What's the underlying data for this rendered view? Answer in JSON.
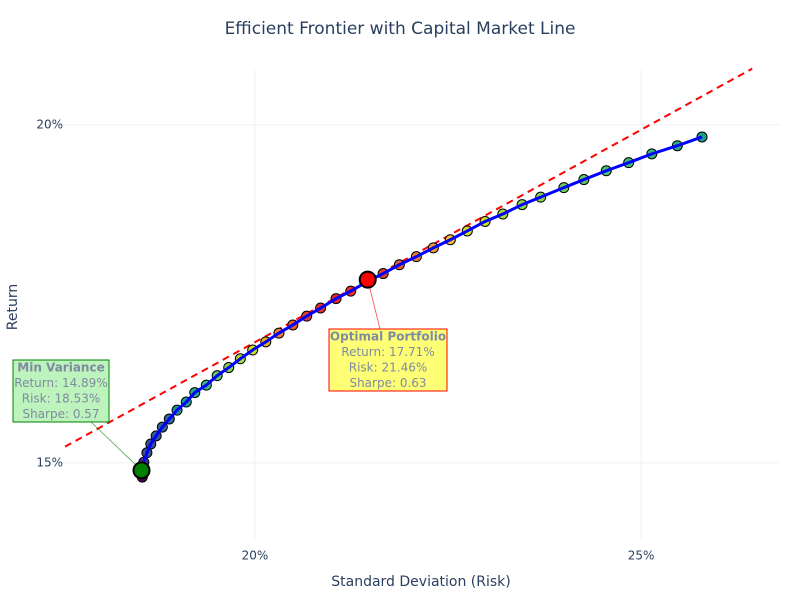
{
  "chart_data": {
    "type": "scatter",
    "title": "Efficient Frontier with Capital Market Line",
    "x_label": "Standard Deviation (Risk)",
    "y_label": "Return",
    "xlim": [
      17.28,
      26.8
    ],
    "ylim": [
      13.86,
      20.81
    ],
    "xticks": [
      {
        "value": 20,
        "label": "20%"
      },
      {
        "value": 25,
        "label": "25%"
      }
    ],
    "yticks": [
      {
        "value": 15,
        "label": "15%"
      },
      {
        "value": 20,
        "label": "20%"
      }
    ],
    "grid": true,
    "series": [
      {
        "color": "#0000ff",
        "x": [
          18.54,
          18.56,
          18.6,
          18.65,
          18.72,
          18.8,
          18.89,
          18.99,
          19.11,
          19.22,
          19.37,
          19.51,
          19.66,
          19.81,
          19.97,
          20.14,
          20.31,
          20.49,
          20.67,
          20.85,
          21.05,
          21.24,
          21.45,
          21.66,
          21.87,
          22.09,
          22.31,
          22.53,
          22.75,
          22.98,
          23.21,
          23.46,
          23.7,
          24.0,
          24.26,
          24.55,
          24.84,
          25.14,
          25.47,
          25.79
        ],
        "values": [
          14.79,
          15.01,
          15.15,
          15.28,
          15.4,
          15.53,
          15.65,
          15.78,
          15.9,
          16.04,
          16.15,
          16.29,
          16.41,
          16.54,
          16.67,
          16.79,
          16.92,
          17.04,
          17.17,
          17.29,
          17.43,
          17.54,
          17.68,
          17.8,
          17.93,
          18.05,
          18.18,
          18.3,
          18.43,
          18.57,
          18.68,
          18.82,
          18.93,
          19.07,
          19.19,
          19.32,
          19.44,
          19.57,
          19.69,
          19.82
        ],
        "marker_colors": [
          "#440154",
          "#46327e",
          "#3b528b",
          "#3b528b",
          "#365c8d",
          "#31688e",
          "#2c728e",
          "#21918c",
          "#1f9e89",
          "#28ae80",
          "#3fbc73",
          "#5ec962",
          "#84d44b",
          "#addc30",
          "#c8e020",
          "#e0b020",
          "#e88030",
          "#e85a30",
          "#e04030",
          "#e03028",
          "#e02828",
          "#e83028",
          "#ff0000",
          "#e04030",
          "#e06030",
          "#e88030",
          "#e8a030",
          "#f0c030",
          "#d8d830",
          "#c8e020",
          "#addc30",
          "#90d743",
          "#84d44b",
          "#6ccd5a",
          "#5ec962",
          "#4ac16d",
          "#3fbc73",
          "#35b779",
          "#28ae80",
          "#1f9e89"
        ]
      }
    ],
    "cml": {
      "color": "#ff0000",
      "x": [
        17.54,
        26.44
      ],
      "values": [
        15.24,
        20.83
      ]
    },
    "annotations": [
      {
        "x": 18.53,
        "y": 14.89,
        "color": "#008000",
        "lines": [
          "Min Variance",
          "Return: 14.89%",
          "Risk: 18.53%",
          "Sharpe: 0.57"
        ]
      },
      {
        "x": 21.46,
        "y": 17.71,
        "color": "#ff0000",
        "lines": [
          "Optimal Portfolio",
          "Return: 17.71%",
          "Risk: 21.46%",
          "Sharpe: 0.63"
        ]
      }
    ]
  }
}
